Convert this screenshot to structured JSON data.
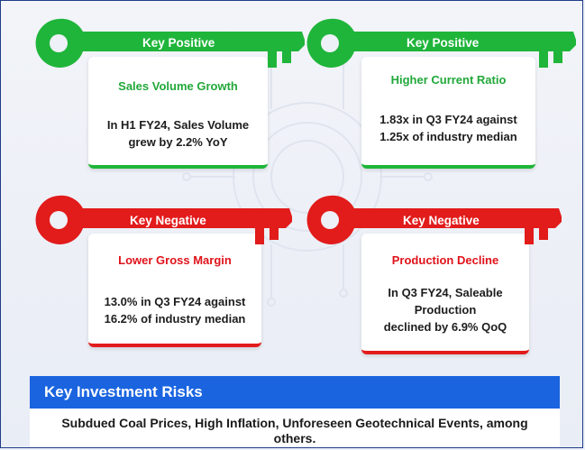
{
  "cards": [
    {
      "tag": "Key Positive",
      "heading": "Sales Volume Growth",
      "line1": "In H1 FY24, Sales Volume",
      "line2": "grew by 2.2% YoY",
      "line3": ""
    },
    {
      "tag": "Key Positive",
      "heading": "Higher Current Ratio",
      "line1": "1.83x in Q3 FY24 against",
      "line2": "1.25x of industry median",
      "line3": ""
    },
    {
      "tag": "Key Negative",
      "heading": "Lower Gross Margin",
      "line1": "13.0% in Q3 FY24 against",
      "line2": "16.2% of industry median",
      "line3": ""
    },
    {
      "tag": "Key Negative",
      "heading": "Production Decline",
      "line1": "In Q3 FY24, Saleable",
      "line2": "Production",
      "line3": "declined by 6.9% QoQ"
    }
  ],
  "risks": {
    "title": "Key Investment Risks",
    "line1": "Subdued Coal Prices, High Inflation, Unforeseen Geotechnical Events, among",
    "line2": "others."
  },
  "colors": {
    "positive": "#1fb53a",
    "negative": "#e21b1b",
    "risk_bar": "#1a64e0"
  },
  "icons": [
    "key-icon"
  ]
}
